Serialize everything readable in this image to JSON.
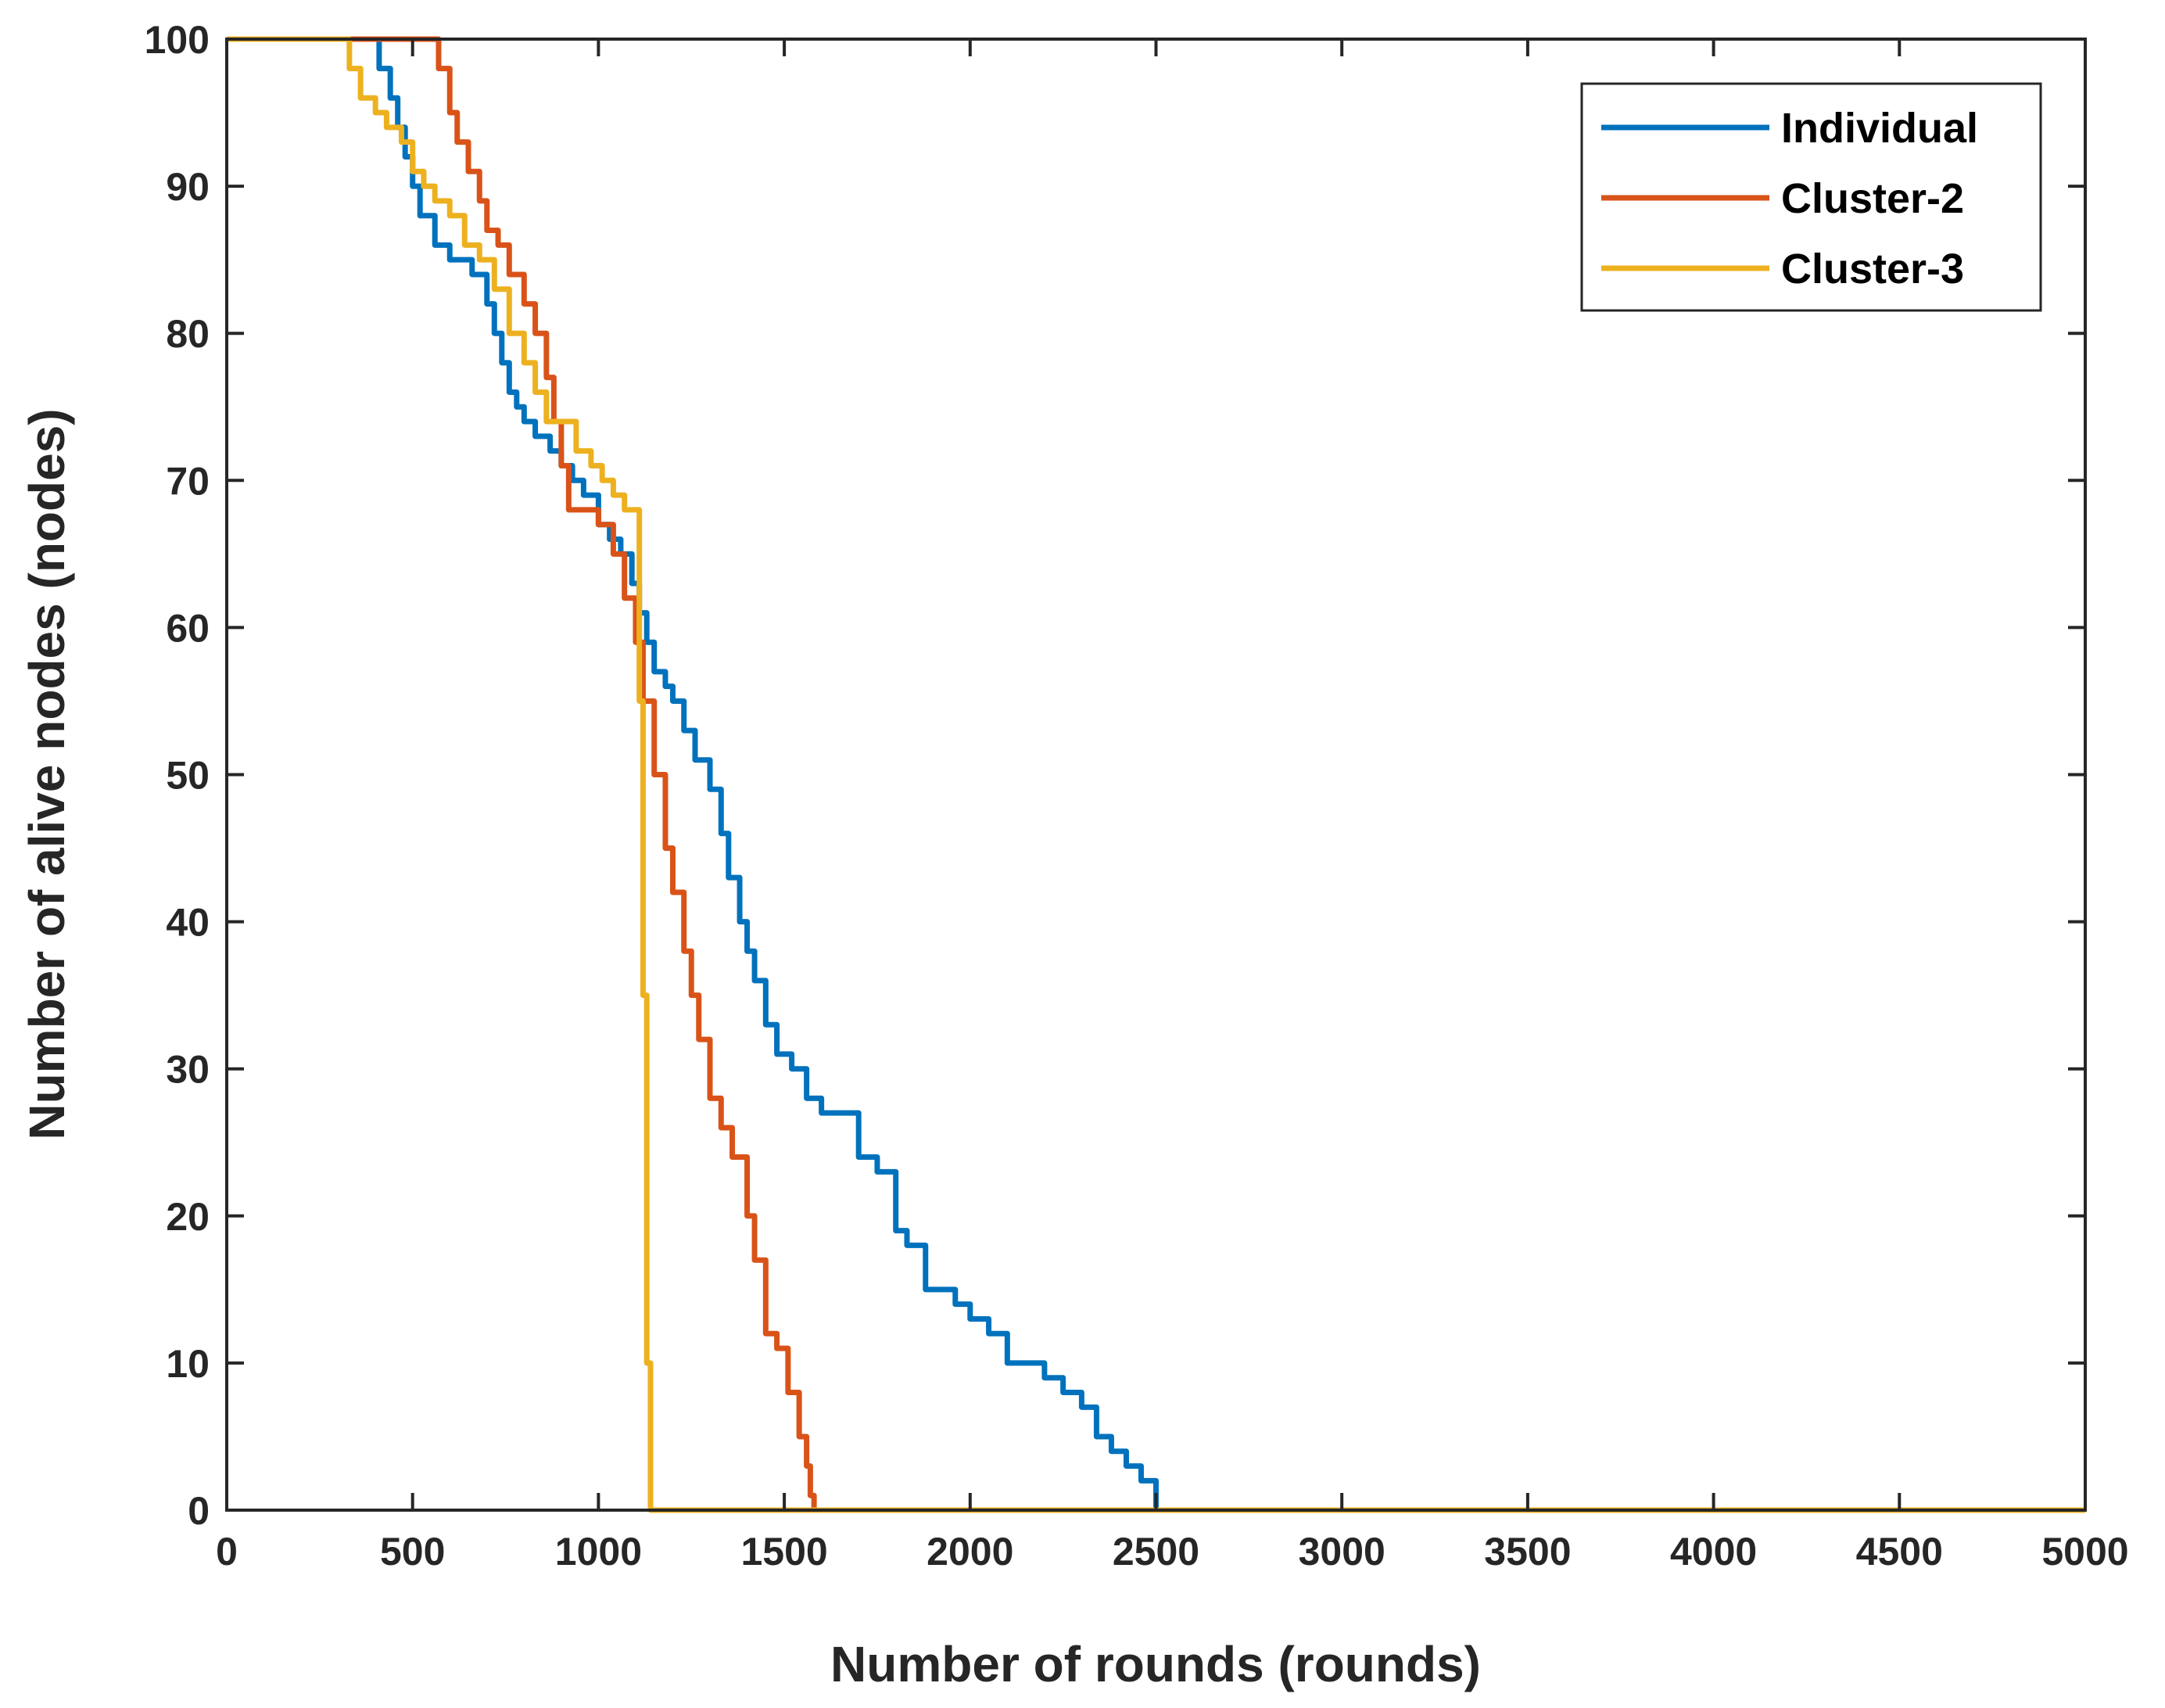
{
  "chart_data": {
    "type": "line",
    "title": "",
    "xlabel": "Number of rounds (rounds)",
    "ylabel": "Number of alive nodes (nodes)",
    "xlim": [
      0,
      5000
    ],
    "ylim": [
      0,
      100
    ],
    "xticks": [
      0,
      500,
      1000,
      1500,
      2000,
      2500,
      3000,
      3500,
      4000,
      4500,
      5000
    ],
    "yticks": [
      0,
      10,
      20,
      30,
      40,
      50,
      60,
      70,
      80,
      90,
      100
    ],
    "grid": false,
    "legend_position": "top-right",
    "series": [
      {
        "name": "Individual",
        "color": "#0072BD",
        "x": [
          0,
          380,
          410,
          440,
          460,
          480,
          500,
          520,
          560,
          600,
          630,
          660,
          700,
          720,
          740,
          760,
          780,
          800,
          830,
          870,
          900,
          930,
          960,
          1000,
          1030,
          1060,
          1090,
          1110,
          1130,
          1150,
          1180,
          1200,
          1230,
          1260,
          1300,
          1330,
          1350,
          1380,
          1400,
          1420,
          1450,
          1480,
          1520,
          1560,
          1600,
          1660,
          1700,
          1750,
          1800,
          1830,
          1880,
          1930,
          1960,
          2000,
          2050,
          2100,
          2150,
          2200,
          2250,
          2300,
          2340,
          2380,
          2420,
          2460,
          2500,
          5000
        ],
        "y": [
          100,
          100,
          98,
          96,
          94,
          92,
          90,
          88,
          86,
          85,
          85,
          84,
          82,
          80,
          78,
          76,
          75,
          74,
          73,
          72,
          71,
          70,
          69,
          67,
          66,
          65,
          63,
          61,
          59,
          57,
          56,
          55,
          53,
          51,
          49,
          46,
          43,
          40,
          38,
          36,
          33,
          31,
          30,
          28,
          27,
          27,
          24,
          23,
          19,
          18,
          15,
          15,
          14,
          13,
          12,
          10,
          10,
          9,
          8,
          7,
          5,
          4,
          3,
          2,
          0,
          0
        ]
      },
      {
        "name": "Cluster-2",
        "color": "#D95319",
        "x": [
          0,
          550,
          570,
          600,
          620,
          650,
          680,
          700,
          730,
          760,
          800,
          830,
          860,
          880,
          900,
          920,
          960,
          1000,
          1040,
          1070,
          1100,
          1120,
          1150,
          1180,
          1200,
          1230,
          1250,
          1270,
          1300,
          1330,
          1360,
          1400,
          1420,
          1450,
          1480,
          1510,
          1540,
          1560,
          1570,
          1580,
          5000
        ],
        "y": [
          100,
          100,
          98,
          95,
          93,
          91,
          89,
          87,
          86,
          84,
          82,
          80,
          77,
          74,
          71,
          68,
          68,
          67,
          65,
          62,
          59,
          55,
          50,
          45,
          42,
          38,
          35,
          32,
          28,
          26,
          24,
          20,
          17,
          12,
          11,
          8,
          5,
          3,
          1,
          0,
          0
        ]
      },
      {
        "name": "Cluster-3",
        "color": "#EDB120",
        "x": [
          0,
          310,
          330,
          360,
          400,
          430,
          470,
          500,
          530,
          560,
          600,
          640,
          680,
          720,
          760,
          800,
          830,
          860,
          900,
          940,
          980,
          1010,
          1040,
          1070,
          1100,
          1110,
          1120,
          1130,
          1140,
          5000
        ],
        "y": [
          100,
          100,
          98,
          96,
          95,
          94,
          93,
          91,
          90,
          89,
          88,
          86,
          85,
          83,
          80,
          78,
          76,
          74,
          74,
          72,
          71,
          70,
          69,
          68,
          68,
          55,
          35,
          10,
          0,
          0
        ]
      }
    ]
  }
}
